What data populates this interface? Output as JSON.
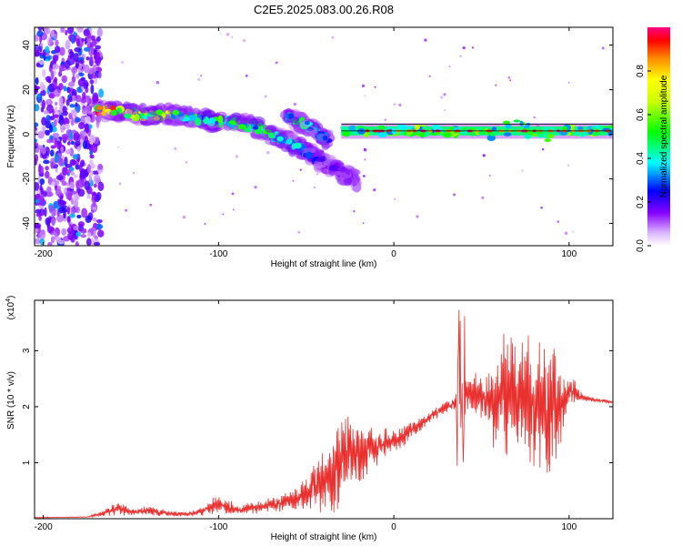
{
  "title": "C2E5.2025.083.00.26.R08",
  "chart_data": [
    {
      "type": "heatmap",
      "xlabel": "Height of straight line (km)",
      "ylabel": "Frequency (Hz)",
      "xlim": [
        -205,
        125
      ],
      "ylim": [
        -50,
        48
      ],
      "xticks": [
        -200,
        -100,
        0,
        100
      ],
      "yticks": [
        -40,
        -20,
        0,
        20,
        40
      ],
      "colorbar": {
        "label": "Normalized spectral amplitude",
        "range": [
          0,
          1
        ],
        "ticks": [
          0.0,
          0.2,
          0.4,
          0.6,
          0.8
        ]
      },
      "noise_region": {
        "x": [
          -205,
          -167
        ],
        "y": [
          -50,
          48
        ],
        "amplitude": 0.3
      },
      "ridge": [
        {
          "x": -168,
          "y": 11,
          "a": 0.9
        },
        {
          "x": -155,
          "y": 10,
          "a": 0.75
        },
        {
          "x": -140,
          "y": 8,
          "a": 0.7
        },
        {
          "x": -128,
          "y": 9,
          "a": 0.6
        },
        {
          "x": -118,
          "y": 8,
          "a": 0.5
        },
        {
          "x": -105,
          "y": 6,
          "a": 0.45
        },
        {
          "x": -90,
          "y": 5,
          "a": 0.55
        },
        {
          "x": -78,
          "y": 3,
          "a": 0.45
        },
        {
          "x": -68,
          "y": -1,
          "a": 0.5
        },
        {
          "x": -58,
          "y": -4,
          "a": 0.45
        },
        {
          "x": -50,
          "y": -8,
          "a": 0.3
        },
        {
          "x": -42,
          "y": -12,
          "a": 0.2
        },
        {
          "x": -30,
          "y": -17,
          "a": 0.15
        },
        {
          "x": -22,
          "y": -21,
          "a": 0.1
        }
      ],
      "branch": [
        {
          "x": -60,
          "y": 8,
          "a": 0.5
        },
        {
          "x": -52,
          "y": 5,
          "a": 0.45
        },
        {
          "x": -45,
          "y": 2,
          "a": 0.4
        },
        {
          "x": -38,
          "y": -3,
          "a": 0.3
        }
      ],
      "line": {
        "x_start": -30,
        "x_end": 125,
        "y": 1.5,
        "a": 0.95
      }
    },
    {
      "type": "line",
      "xlabel": "Height of straight line (km)",
      "ylabel": "SNR (10 * v/v)",
      "yscale_label": "(x10",
      "yscale_exp": "4",
      "xlim": [
        -205,
        125
      ],
      "ylim": [
        0,
        3.9
      ],
      "xticks": [
        -200,
        -100,
        0,
        100
      ],
      "yticks": [
        1,
        2,
        3
      ],
      "color": "#e8302e",
      "series": [
        {
          "x": [
            -205,
            -175,
            -165,
            -160,
            -155,
            -150,
            -140,
            -130,
            -120,
            -110,
            -105,
            -100,
            -95,
            -90,
            -80,
            -70,
            -60,
            -50,
            -45,
            -40,
            -35,
            -30,
            -25,
            -20,
            -15,
            -10,
            -5,
            0,
            5,
            10,
            15,
            20,
            25,
            30,
            35,
            38,
            40,
            45,
            50,
            55,
            60,
            65,
            70,
            75,
            80,
            85,
            90,
            95,
            100,
            105,
            110,
            115,
            120,
            125
          ],
          "y": [
            0.02,
            0.03,
            0.1,
            0.15,
            0.18,
            0.12,
            0.15,
            0.1,
            0.08,
            0.12,
            0.22,
            0.25,
            0.2,
            0.15,
            0.2,
            0.25,
            0.3,
            0.45,
            0.6,
            0.7,
            0.85,
            1.1,
            1.2,
            1.15,
            1.25,
            1.3,
            1.35,
            1.4,
            1.5,
            1.6,
            1.7,
            1.8,
            1.9,
            2.0,
            2.05,
            2.1,
            2.3,
            2.2,
            2.15,
            2.1,
            2.05,
            2.15,
            2.2,
            2.2,
            2.1,
            2.0,
            2.0,
            2.1,
            2.3,
            2.2,
            2.15,
            2.12,
            2.1,
            2.08
          ],
          "noise": [
            0.01,
            0.01,
            0.08,
            0.15,
            0.18,
            0.08,
            0.12,
            0.08,
            0.06,
            0.1,
            0.2,
            0.25,
            0.2,
            0.15,
            0.15,
            0.2,
            0.25,
            0.45,
            0.7,
            0.8,
            1.0,
            1.3,
            1.1,
            0.9,
            0.6,
            0.5,
            0.4,
            0.35,
            0.3,
            0.25,
            0.2,
            0.15,
            0.15,
            0.15,
            0.15,
            1.6,
            0.6,
            0.5,
            0.6,
            1.0,
            1.5,
            1.6,
            1.5,
            1.6,
            1.7,
            1.6,
            1.6,
            1.2,
            0.5,
            0.2,
            0.08,
            0.05,
            0.05,
            0.05
          ]
        }
      ]
    }
  ]
}
